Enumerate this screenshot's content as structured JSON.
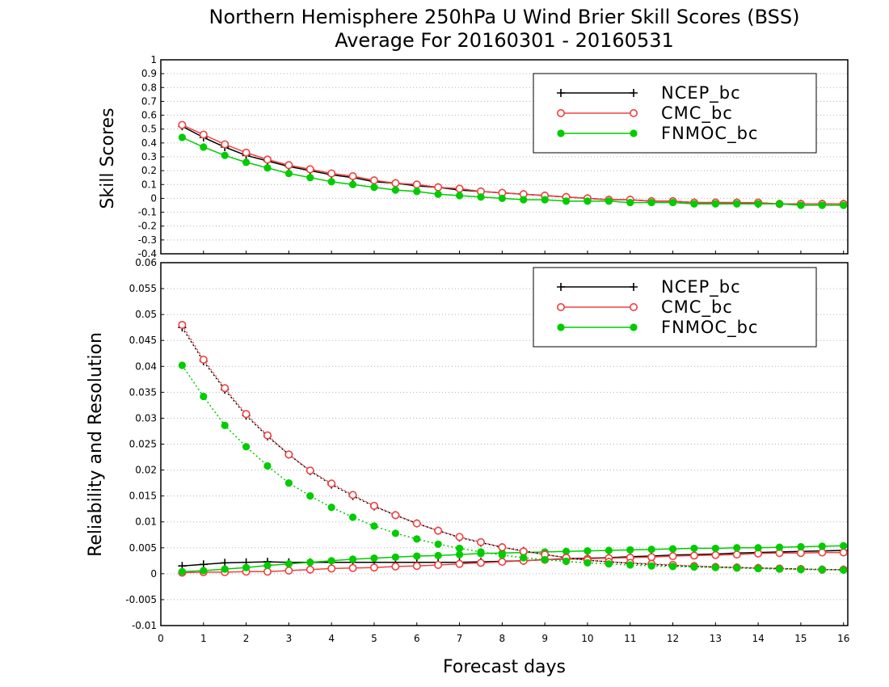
{
  "chart_data": [
    {
      "type": "line",
      "title": "Northern Hemisphere 250hPa U Wind Brier Skill Scores (BSS)",
      "subtitle": "Average For 20160301 - 20160531",
      "xlabel": "",
      "ylabel": "Skill Scores",
      "xlim": [
        0,
        16.1
      ],
      "ylim": [
        -0.4,
        1
      ],
      "grid": true,
      "legend_position": "top-right",
      "yticks": [
        "-0.4",
        "-0.3",
        "-0.2",
        "-0.1",
        "0",
        "0.1",
        "0.2",
        "0.3",
        "0.4",
        "0.5",
        "0.6",
        "0.7",
        "0.8",
        "0.9",
        "1"
      ],
      "x": [
        0.5,
        1,
        1.5,
        2,
        2.5,
        3,
        3.5,
        4,
        4.5,
        5,
        5.5,
        6,
        6.5,
        7,
        7.5,
        8,
        8.5,
        9,
        9.5,
        10,
        10.5,
        11,
        11.5,
        12,
        12.5,
        13,
        13.5,
        14,
        14.5,
        15,
        15.5,
        16
      ],
      "series": [
        {
          "name": "NCEP_bc",
          "color": "#000000",
          "marker": "plus",
          "values": [
            0.52,
            0.44,
            0.37,
            0.31,
            0.27,
            0.23,
            0.2,
            0.17,
            0.15,
            0.12,
            0.11,
            0.09,
            0.08,
            0.06,
            0.05,
            0.04,
            0.03,
            0.02,
            0.01,
            0,
            -0.01,
            -0.01,
            -0.02,
            -0.02,
            -0.03,
            -0.03,
            -0.03,
            -0.04,
            -0.04,
            -0.04,
            -0.04,
            -0.04
          ]
        },
        {
          "name": "CMC_bc",
          "color": "#ee4040",
          "marker": "open-circle",
          "values": [
            0.53,
            0.46,
            0.39,
            0.33,
            0.28,
            0.24,
            0.21,
            0.18,
            0.16,
            0.13,
            0.11,
            0.1,
            0.08,
            0.07,
            0.05,
            0.04,
            0.03,
            0.02,
            0.01,
            0,
            -0.01,
            -0.01,
            -0.02,
            -0.02,
            -0.03,
            -0.03,
            -0.03,
            -0.03,
            -0.04,
            -0.04,
            -0.04,
            -0.04
          ]
        },
        {
          "name": "FNMOC_bc",
          "color": "#00cc00",
          "marker": "filled-circle",
          "values": [
            0.44,
            0.37,
            0.31,
            0.26,
            0.22,
            0.18,
            0.15,
            0.12,
            0.1,
            0.08,
            0.06,
            0.05,
            0.03,
            0.02,
            0.01,
            0,
            -0.01,
            -0.01,
            -0.02,
            -0.02,
            -0.02,
            -0.03,
            -0.03,
            -0.03,
            -0.04,
            -0.04,
            -0.04,
            -0.04,
            -0.04,
            -0.05,
            -0.05,
            -0.05
          ]
        }
      ]
    },
    {
      "type": "line",
      "title": "",
      "xlabel": "Forecast days",
      "ylabel": "Reliability and Resolution",
      "xlim": [
        0,
        16.1
      ],
      "ylim": [
        -0.01,
        0.06
      ],
      "grid": true,
      "legend_position": "top-right",
      "xticks": [
        "0",
        "1",
        "2",
        "3",
        "4",
        "5",
        "6",
        "7",
        "8",
        "9",
        "10",
        "11",
        "12",
        "13",
        "14",
        "15",
        "16"
      ],
      "yticks": [
        "-0.01",
        "-0.005",
        "0",
        "0.005",
        "0.01",
        "0.015",
        "0.02",
        "0.025",
        "0.03",
        "0.035",
        "0.04",
        "0.045",
        "0.05",
        "0.055",
        "0.06"
      ],
      "x": [
        0.5,
        1,
        1.5,
        2,
        2.5,
        3,
        3.5,
        4,
        4.5,
        5,
        5.5,
        6,
        6.5,
        7,
        7.5,
        8,
        8.5,
        9,
        9.5,
        10,
        10.5,
        11,
        11.5,
        12,
        12.5,
        13,
        13.5,
        14,
        14.5,
        15,
        15.5,
        16
      ],
      "series": [
        {
          "name": "NCEP_bc",
          "kind": "reliability",
          "color": "#000000",
          "marker": "plus",
          "line": "solid",
          "values": [
            0.0015,
            0.0018,
            0.0021,
            0.0022,
            0.0023,
            0.0022,
            0.0022,
            0.0022,
            0.0022,
            0.0022,
            0.0022,
            0.0022,
            0.0022,
            0.0022,
            0.0023,
            0.0024,
            0.0025,
            0.0027,
            0.0029,
            0.003,
            0.0031,
            0.0033,
            0.0034,
            0.0036,
            0.0037,
            0.0038,
            0.004,
            0.0041,
            0.0042,
            0.0043,
            0.0044,
            0.0045
          ]
        },
        {
          "name": "CMC_bc",
          "kind": "reliability",
          "color": "#ee4040",
          "marker": "open-circle",
          "line": "solid",
          "values": [
            0.0002,
            0.0003,
            0.0003,
            0.0004,
            0.0004,
            0.0006,
            0.0008,
            0.001,
            0.0011,
            0.0012,
            0.0014,
            0.0015,
            0.0017,
            0.0019,
            0.0021,
            0.0023,
            0.0025,
            0.0027,
            0.0028,
            0.0029,
            0.003,
            0.0031,
            0.0032,
            0.0034,
            0.0035,
            0.0036,
            0.0037,
            0.0039,
            0.004,
            0.004,
            0.0041,
            0.0041
          ]
        },
        {
          "name": "FNMOC_bc",
          "kind": "reliability",
          "color": "#00cc00",
          "marker": "filled-circle",
          "line": "solid",
          "values": [
            0.0004,
            0.0006,
            0.0009,
            0.0012,
            0.0016,
            0.0019,
            0.0022,
            0.0025,
            0.0028,
            0.003,
            0.0032,
            0.0034,
            0.0035,
            0.0037,
            0.0039,
            0.004,
            0.0041,
            0.0042,
            0.0043,
            0.0044,
            0.0045,
            0.0046,
            0.0047,
            0.0048,
            0.0049,
            0.0049,
            0.005,
            0.005,
            0.0051,
            0.0052,
            0.0053,
            0.0054
          ]
        },
        {
          "name": "NCEP_bc",
          "kind": "resolution",
          "color": "#000000",
          "marker": "plus",
          "line": "dotted",
          "values": [
            0.0475,
            0.041,
            0.0355,
            0.0305,
            0.0265,
            0.023,
            0.0198,
            0.0172,
            0.015,
            0.013,
            0.0113,
            0.0097,
            0.0083,
            0.007,
            0.006,
            0.0051,
            0.0044,
            0.0037,
            0.0031,
            0.0026,
            0.0023,
            0.002,
            0.0018,
            0.0016,
            0.0014,
            0.0013,
            0.0012,
            0.0011,
            0.001,
            0.0009,
            0.0008,
            0.0008
          ]
        },
        {
          "name": "CMC_bc",
          "kind": "resolution",
          "color": "#ee4040",
          "marker": "open-circle",
          "line": "dotted",
          "values": [
            0.048,
            0.0413,
            0.0358,
            0.0308,
            0.0267,
            0.023,
            0.0199,
            0.0174,
            0.0152,
            0.0131,
            0.0113,
            0.0097,
            0.0083,
            0.0071,
            0.0061,
            0.0051,
            0.0043,
            0.0037,
            0.0031,
            0.0026,
            0.0023,
            0.0021,
            0.0019,
            0.0017,
            0.0015,
            0.0013,
            0.0012,
            0.0011,
            0.001,
            0.0009,
            0.0008,
            0.0008
          ]
        },
        {
          "name": "FNMOC_bc",
          "kind": "resolution",
          "color": "#00cc00",
          "marker": "filled-circle",
          "line": "dotted",
          "values": [
            0.0402,
            0.0342,
            0.0286,
            0.0245,
            0.0208,
            0.0175,
            0.015,
            0.0128,
            0.0109,
            0.0092,
            0.0078,
            0.0067,
            0.0057,
            0.0049,
            0.0042,
            0.0036,
            0.0031,
            0.0027,
            0.0024,
            0.0021,
            0.0019,
            0.0017,
            0.0015,
            0.0014,
            0.0013,
            0.0012,
            0.0011,
            0.001,
            0.0009,
            0.0008,
            0.0008,
            0.0007
          ]
        }
      ]
    }
  ]
}
